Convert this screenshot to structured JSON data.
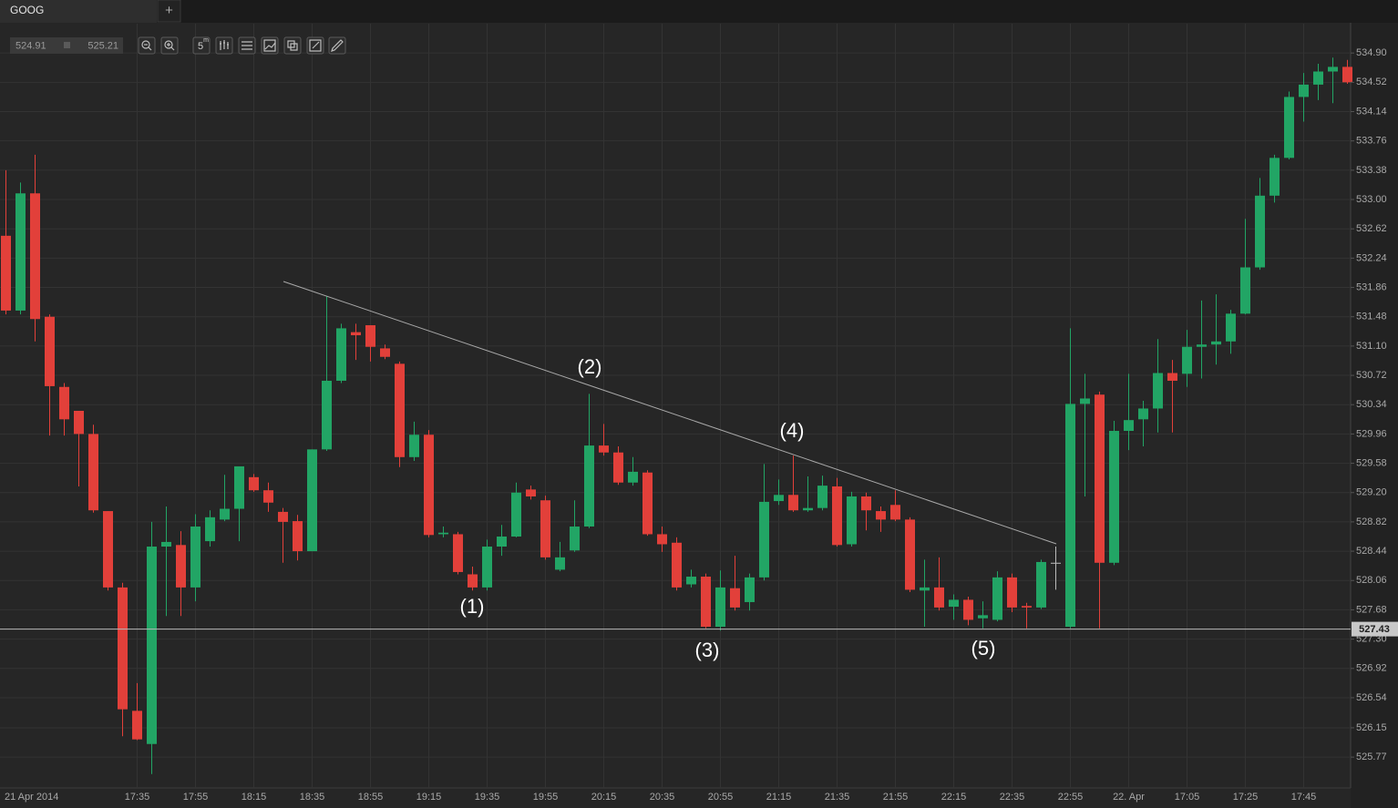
{
  "tab": {
    "title": "GOOG",
    "add": "+"
  },
  "toolbar": {
    "bid": "524.91",
    "ask": "525.21",
    "interval": "5",
    "interval_unit": "m"
  },
  "chart_data": {
    "type": "candlestick",
    "categories": [
      "21 Apr 2014",
      null,
      null,
      null,
      null,
      null,
      null,
      null,
      null,
      "17:35",
      null,
      null,
      null,
      "17:55",
      null,
      null,
      null,
      "18:15",
      null,
      null,
      null,
      "18:35",
      null,
      null,
      null,
      "18:55",
      null,
      null,
      null,
      "19:15",
      null,
      null,
      null,
      "19:35",
      null,
      null,
      null,
      "19:55",
      null,
      null,
      null,
      "20:15",
      null,
      null,
      null,
      "20:35",
      null,
      null,
      null,
      "20:55",
      null,
      null,
      null,
      "21:15",
      null,
      null,
      null,
      "21:35",
      null,
      null,
      null,
      "21:55",
      null,
      null,
      null,
      "22:15",
      null,
      null,
      null,
      "22:35",
      null,
      null,
      null,
      "22:55",
      null,
      null,
      null,
      "22. Apr",
      null,
      null,
      null,
      "17:05",
      null,
      null,
      null,
      "17:25",
      null,
      null,
      null,
      "17:45",
      null,
      null,
      null
    ],
    "open": [
      532.53,
      531.56,
      533.08,
      531.48,
      530.57,
      530.26,
      529.96,
      528.96,
      527.97,
      526.37,
      525.94,
      528.5,
      528.52,
      527.97,
      528.57,
      528.85,
      528.99,
      529.4,
      529.23,
      528.95,
      528.83,
      528.44,
      529.76,
      530.65,
      531.28,
      531.37,
      531.07,
      530.87,
      529.66,
      529.95,
      528.66,
      528.66,
      528.14,
      527.97,
      528.5,
      528.63,
      529.24,
      529.1,
      528.2,
      528.45,
      528.76,
      529.81,
      529.72,
      529.33,
      529.46,
      528.66,
      528.55,
      528.01,
      528.11,
      527.46,
      527.96,
      527.78,
      528.1,
      529.09,
      529.17,
      528.97,
      529.0,
      529.28,
      528.53,
      529.15,
      528.96,
      529.04,
      528.85,
      527.93,
      527.97,
      527.72,
      527.81,
      527.57,
      527.55,
      528.1,
      527.73,
      527.71,
      528.29,
      527.46,
      530.35,
      530.47,
      528.29,
      530.0,
      530.15,
      530.29,
      530.75,
      530.74,
      531.09,
      531.12,
      531.16,
      531.52,
      532.12,
      533.05,
      533.54,
      534.33,
      534.49,
      534.66,
      534.72
    ],
    "high": [
      533.38,
      533.22,
      533.58,
      531.51,
      530.62,
      530.26,
      530.08,
      528.96,
      528.03,
      526.73,
      528.82,
      529.02,
      528.7,
      528.92,
      528.97,
      529.43,
      529.54,
      529.44,
      529.33,
      529.0,
      528.91,
      529.76,
      531.75,
      531.39,
      531.39,
      531.37,
      531.12,
      530.9,
      530.12,
      530.01,
      528.76,
      528.69,
      528.24,
      528.59,
      528.78,
      529.33,
      529.29,
      529.16,
      528.56,
      529.1,
      530.48,
      530.09,
      529.8,
      529.66,
      529.49,
      528.76,
      528.62,
      528.2,
      528.15,
      528.19,
      528.38,
      528.15,
      529.57,
      529.37,
      529.68,
      529.41,
      529.42,
      529.39,
      529.21,
      529.2,
      529.02,
      529.23,
      528.88,
      528.33,
      528.36,
      527.88,
      527.85,
      527.79,
      528.18,
      528.15,
      527.77,
      528.33,
      528.5,
      531.33,
      530.74,
      530.51,
      530.13,
      530.74,
      530.39,
      531.19,
      530.92,
      531.31,
      531.69,
      531.77,
      531.57,
      532.75,
      533.28,
      533.58,
      534.4,
      534.64,
      534.76,
      534.84,
      534.81
    ],
    "low": [
      531.51,
      531.51,
      531.16,
      529.94,
      529.94,
      529.28,
      528.94,
      527.93,
      526.04,
      525.99,
      525.55,
      527.6,
      527.6,
      527.79,
      528.5,
      528.83,
      528.57,
      529.21,
      528.95,
      528.29,
      528.32,
      528.44,
      529.74,
      530.62,
      530.92,
      530.9,
      530.93,
      529.53,
      529.61,
      528.62,
      528.62,
      528.14,
      527.93,
      527.93,
      528.38,
      528.62,
      529.11,
      528.33,
      528.18,
      528.43,
      528.74,
      529.68,
      529.3,
      529.29,
      528.64,
      528.43,
      527.93,
      527.97,
      527.44,
      527.41,
      527.67,
      527.67,
      528.06,
      529.04,
      528.95,
      528.95,
      528.97,
      528.5,
      528.5,
      528.71,
      528.69,
      528.83,
      527.91,
      527.46,
      527.67,
      527.55,
      527.48,
      527.44,
      527.53,
      527.65,
      527.44,
      527.69,
      527.94,
      527.44,
      529.15,
      527.44,
      528.26,
      529.75,
      529.8,
      529.98,
      529.98,
      530.57,
      530.68,
      530.86,
      531.0,
      531.51,
      532.09,
      532.96,
      533.52,
      534.01,
      534.29,
      534.25,
      534.5
    ],
    "close": [
      531.56,
      533.08,
      531.45,
      530.58,
      530.15,
      529.96,
      528.97,
      527.97,
      526.39,
      526.0,
      528.5,
      528.56,
      527.97,
      528.76,
      528.88,
      528.99,
      529.54,
      529.23,
      529.07,
      528.82,
      528.44,
      529.76,
      530.65,
      531.33,
      531.24,
      531.09,
      530.96,
      529.66,
      529.95,
      528.65,
      528.68,
      528.17,
      527.97,
      528.5,
      528.63,
      529.2,
      529.15,
      528.36,
      528.36,
      528.76,
      529.81,
      529.72,
      529.33,
      529.47,
      528.66,
      528.53,
      527.97,
      528.11,
      527.46,
      527.97,
      527.71,
      528.1,
      529.08,
      529.17,
      528.97,
      529.0,
      529.29,
      528.52,
      529.15,
      528.97,
      528.85,
      528.85,
      527.94,
      527.97,
      527.71,
      527.81,
      527.55,
      527.61,
      528.1,
      527.71,
      527.71,
      528.3,
      528.29,
      530.35,
      530.42,
      528.29,
      530.0,
      530.14,
      530.29,
      530.75,
      530.65,
      531.09,
      531.12,
      531.16,
      531.52,
      532.12,
      533.05,
      533.54,
      534.33,
      534.49,
      534.66,
      534.72,
      534.52
    ],
    "up_color": "#22a565",
    "down_color": "#e2403a",
    "flat_color": "#bbbbbb",
    "ylim": [
      525.37,
      535.28
    ],
    "yticks": [
      {
        "value": 534.9,
        "label": "534.90"
      },
      534.52,
      534.14,
      533.76,
      533.38,
      {
        "value": 533,
        "label": "533.00"
      },
      532.62,
      532.24,
      531.86,
      531.48,
      {
        "value": 531.1,
        "label": "531.10"
      },
      530.72,
      530.34,
      529.96,
      529.58,
      {
        "value": 529.2,
        "label": "529.20"
      },
      528.82,
      528.44,
      528.06,
      527.68,
      {
        "value": 527.3,
        "label": "527.30"
      },
      526.92,
      526.54,
      526.15,
      525.77
    ],
    "grid": true,
    "hline": 527.43,
    "annotations": [
      "(1)",
      "(2)",
      "(3)",
      "(4)",
      "(5)"
    ]
  }
}
